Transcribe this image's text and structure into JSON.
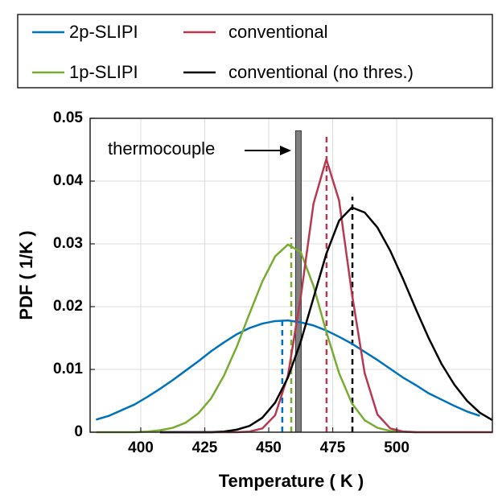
{
  "chart_data": {
    "type": "line",
    "xlabel": "Temperature ( K )",
    "ylabel": "PDF ( 1/K )",
    "x": [
      382.5,
      387.5,
      392.5,
      397.5,
      402.5,
      407.5,
      412.5,
      417.5,
      422.5,
      427.5,
      432.5,
      437.5,
      442.5,
      447.5,
      452.5,
      457.5,
      462.5,
      467.5,
      472.5,
      477.5,
      482.5,
      487.5,
      492.5,
      497.5,
      502.5,
      507.5,
      512.5,
      517.5,
      522.5,
      527.5,
      532.5,
      537.5
    ],
    "series": [
      {
        "name": "2p-SLIPI",
        "color": "#0072bd",
        "values": [
          0.002,
          0.0026,
          0.0035,
          0.0044,
          0.0056,
          0.0069,
          0.0083,
          0.0098,
          0.0113,
          0.0129,
          0.0143,
          0.0156,
          0.0166,
          0.0173,
          0.0177,
          0.0178,
          0.0175,
          0.017,
          0.0162,
          0.0152,
          0.0141,
          0.0128,
          0.0115,
          0.0101,
          0.0087,
          0.0075,
          0.0062,
          0.0052,
          0.0042,
          0.0033,
          0.0026,
          null
        ]
      },
      {
        "name": "1p-SLIPI",
        "color": "#77ac30",
        "values": [
          0,
          0,
          0,
          0,
          0.0001,
          0.0003,
          0.0007,
          0.0015,
          0.003,
          0.0054,
          0.009,
          0.0136,
          0.0189,
          0.024,
          0.028,
          0.0299,
          0.0287,
          0.0233,
          0.016,
          0.0094,
          0.0046,
          0.0019,
          0.0007,
          0.0002,
          0.0001,
          0,
          null,
          null,
          null,
          null,
          null,
          null
        ]
      },
      {
        "name": "conventional",
        "color": "#b8394f",
        "values": [
          null,
          null,
          null,
          null,
          null,
          0,
          0,
          0,
          0,
          0,
          0,
          0,
          0.0001,
          0.0006,
          0.0027,
          0.009,
          0.0215,
          0.0364,
          0.0435,
          0.0369,
          0.0221,
          0.0094,
          0.0028,
          0.0006,
          0.0001,
          0,
          0,
          0,
          0,
          0,
          0,
          0
        ]
      },
      {
        "name": "conventional (no thres.)",
        "color": "#000000",
        "values": [
          null,
          null,
          null,
          null,
          null,
          0,
          0,
          0,
          0,
          0,
          0.0001,
          0.0004,
          0.001,
          0.0023,
          0.0047,
          0.0087,
          0.0144,
          0.0214,
          0.0284,
          0.0337,
          0.0358,
          0.035,
          0.0326,
          0.0289,
          0.0244,
          0.0196,
          0.015,
          0.0109,
          0.0076,
          0.005,
          0.0031,
          0.0019
        ]
      }
    ],
    "vlines": [
      {
        "x": 455.3,
        "top": 0.018,
        "color": "#0072bd"
      },
      {
        "x": 458.8,
        "top": 0.031,
        "color": "#77ac30"
      },
      {
        "x": 472.6,
        "top": 0.0475,
        "color": "#b8394f"
      },
      {
        "x": 482.7,
        "top": 0.0375,
        "color": "#000000"
      }
    ],
    "thermocouple": {
      "label": "thermocouple",
      "x": 461.6,
      "value": 0.048,
      "color": "#808080"
    },
    "xlim": [
      380.2,
      537.4
    ],
    "ylim": [
      0,
      0.05
    ],
    "xticks": [
      400,
      425,
      450,
      475,
      500
    ],
    "yticks": [
      0,
      0.01,
      0.02,
      0.03,
      0.04,
      0.05
    ],
    "grid": true
  }
}
